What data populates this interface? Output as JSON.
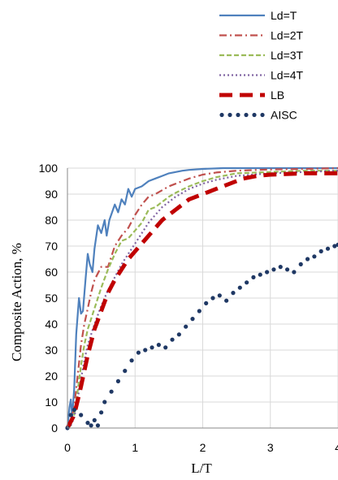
{
  "chart_data": {
    "type": "line",
    "xlabel": "L/T",
    "ylabel": "Composite Action, %",
    "xlim": [
      0,
      4
    ],
    "ylim": [
      0,
      100
    ],
    "x_ticks": [
      "0",
      "1",
      "2",
      "3",
      "4"
    ],
    "y_ticks": [
      "0",
      "10",
      "20",
      "30",
      "40",
      "50",
      "60",
      "70",
      "80",
      "90",
      "100"
    ],
    "grid": "both",
    "legend_position": "top-right",
    "series": [
      {
        "name": "Ld=T",
        "color": "#4f81bd",
        "style": "solid",
        "points": [
          [
            0,
            0
          ],
          [
            0.03,
            8
          ],
          [
            0.05,
            11
          ],
          [
            0.07,
            4
          ],
          [
            0.1,
            15
          ],
          [
            0.13,
            36
          ],
          [
            0.17,
            50
          ],
          [
            0.2,
            44
          ],
          [
            0.23,
            45
          ],
          [
            0.27,
            58
          ],
          [
            0.3,
            67
          ],
          [
            0.33,
            63
          ],
          [
            0.37,
            60
          ],
          [
            0.4,
            69
          ],
          [
            0.45,
            78
          ],
          [
            0.5,
            75
          ],
          [
            0.55,
            80
          ],
          [
            0.58,
            74
          ],
          [
            0.62,
            80
          ],
          [
            0.7,
            86
          ],
          [
            0.75,
            83
          ],
          [
            0.8,
            88
          ],
          [
            0.85,
            86
          ],
          [
            0.9,
            92
          ],
          [
            0.95,
            89
          ],
          [
            1.0,
            92
          ],
          [
            1.1,
            93
          ],
          [
            1.2,
            95
          ],
          [
            1.3,
            96
          ],
          [
            1.4,
            97
          ],
          [
            1.5,
            98
          ],
          [
            1.6,
            98.5
          ],
          [
            1.7,
            99
          ],
          [
            1.8,
            99.3
          ],
          [
            2.0,
            99.7
          ],
          [
            2.3,
            100
          ],
          [
            3.0,
            100
          ],
          [
            4.0,
            100
          ]
        ]
      },
      {
        "name": "Ld=2T",
        "color": "#c0504d",
        "style": "dashdot",
        "points": [
          [
            0,
            0
          ],
          [
            0.05,
            3
          ],
          [
            0.1,
            8
          ],
          [
            0.15,
            20
          ],
          [
            0.2,
            32
          ],
          [
            0.25,
            40
          ],
          [
            0.3,
            46
          ],
          [
            0.35,
            52
          ],
          [
            0.4,
            57
          ],
          [
            0.5,
            62
          ],
          [
            0.6,
            62
          ],
          [
            0.7,
            70
          ],
          [
            0.8,
            74
          ],
          [
            0.9,
            77
          ],
          [
            1.0,
            82
          ],
          [
            1.1,
            86
          ],
          [
            1.2,
            89
          ],
          [
            1.3,
            90
          ],
          [
            1.4,
            91.5
          ],
          [
            1.5,
            93
          ],
          [
            1.6,
            94
          ],
          [
            1.8,
            96
          ],
          [
            2.0,
            97.5
          ],
          [
            2.2,
            98.3
          ],
          [
            2.5,
            99
          ],
          [
            3.0,
            99.5
          ],
          [
            3.5,
            99.7
          ],
          [
            4.0,
            100
          ]
        ]
      },
      {
        "name": "Ld=3T",
        "color": "#9bbb59",
        "style": "dashed",
        "points": [
          [
            0,
            0
          ],
          [
            0.05,
            1
          ],
          [
            0.1,
            5
          ],
          [
            0.15,
            14
          ],
          [
            0.2,
            24
          ],
          [
            0.25,
            32
          ],
          [
            0.3,
            38
          ],
          [
            0.4,
            46
          ],
          [
            0.5,
            54
          ],
          [
            0.6,
            61
          ],
          [
            0.7,
            67
          ],
          [
            0.8,
            72
          ],
          [
            0.9,
            73
          ],
          [
            1.0,
            76
          ],
          [
            1.1,
            79
          ],
          [
            1.2,
            84
          ],
          [
            1.3,
            85
          ],
          [
            1.4,
            87
          ],
          [
            1.5,
            89
          ],
          [
            1.6,
            90.5
          ],
          [
            1.8,
            93
          ],
          [
            2.0,
            95
          ],
          [
            2.2,
            96.5
          ],
          [
            2.5,
            98
          ],
          [
            3.0,
            98.5
          ],
          [
            3.5,
            99
          ],
          [
            4.0,
            99
          ]
        ]
      },
      {
        "name": "Ld=4T",
        "color": "#8064a2",
        "style": "dotted",
        "points": [
          [
            0,
            0
          ],
          [
            0.05,
            1
          ],
          [
            0.1,
            4
          ],
          [
            0.15,
            11
          ],
          [
            0.2,
            19
          ],
          [
            0.25,
            26
          ],
          [
            0.3,
            32
          ],
          [
            0.4,
            40
          ],
          [
            0.5,
            47
          ],
          [
            0.6,
            53
          ],
          [
            0.7,
            58
          ],
          [
            0.8,
            63
          ],
          [
            0.9,
            67
          ],
          [
            1.0,
            71
          ],
          [
            1.1,
            75
          ],
          [
            1.2,
            79
          ],
          [
            1.3,
            82
          ],
          [
            1.4,
            85
          ],
          [
            1.5,
            87
          ],
          [
            1.6,
            89
          ],
          [
            1.8,
            92
          ],
          [
            2.0,
            94
          ],
          [
            2.2,
            95.5
          ],
          [
            2.5,
            97
          ],
          [
            3.0,
            98
          ],
          [
            3.5,
            98.5
          ],
          [
            4.0,
            99
          ]
        ]
      },
      {
        "name": "LB",
        "color": "#c00000",
        "style": "longdash",
        "points": [
          [
            0,
            0
          ],
          [
            0.1,
            5
          ],
          [
            0.2,
            16
          ],
          [
            0.3,
            28
          ],
          [
            0.4,
            38
          ],
          [
            0.5,
            45
          ],
          [
            0.6,
            52
          ],
          [
            0.7,
            57
          ],
          [
            0.8,
            61
          ],
          [
            0.9,
            65
          ],
          [
            1.0,
            68
          ],
          [
            1.2,
            74
          ],
          [
            1.4,
            80
          ],
          [
            1.6,
            84
          ],
          [
            1.8,
            88
          ],
          [
            2.0,
            90
          ],
          [
            2.2,
            92
          ],
          [
            2.4,
            94
          ],
          [
            2.6,
            96
          ],
          [
            2.8,
            97
          ],
          [
            3.0,
            97.5
          ],
          [
            3.5,
            98
          ],
          [
            4.0,
            98
          ]
        ]
      },
      {
        "name": "AISC",
        "color": "#1f3864",
        "style": "dots",
        "points": [
          [
            0.0,
            0
          ],
          [
            0.05,
            5
          ],
          [
            0.1,
            7
          ],
          [
            0.2,
            5
          ],
          [
            0.3,
            2
          ],
          [
            0.35,
            1
          ],
          [
            0.4,
            3
          ],
          [
            0.45,
            1
          ],
          [
            0.5,
            6
          ],
          [
            0.55,
            10
          ],
          [
            0.65,
            14
          ],
          [
            0.75,
            18
          ],
          [
            0.85,
            22
          ],
          [
            0.95,
            26
          ],
          [
            1.05,
            29
          ],
          [
            1.15,
            30
          ],
          [
            1.25,
            31
          ],
          [
            1.35,
            32
          ],
          [
            1.45,
            31
          ],
          [
            1.55,
            34
          ],
          [
            1.65,
            36
          ],
          [
            1.75,
            39
          ],
          [
            1.85,
            42
          ],
          [
            1.95,
            45
          ],
          [
            2.05,
            48
          ],
          [
            2.15,
            50
          ],
          [
            2.25,
            51
          ],
          [
            2.35,
            49
          ],
          [
            2.45,
            52
          ],
          [
            2.55,
            54
          ],
          [
            2.65,
            56
          ],
          [
            2.75,
            58
          ],
          [
            2.85,
            59
          ],
          [
            2.95,
            60
          ],
          [
            3.05,
            61
          ],
          [
            3.15,
            62
          ],
          [
            3.25,
            61
          ],
          [
            3.35,
            60
          ],
          [
            3.45,
            63
          ],
          [
            3.55,
            65
          ],
          [
            3.65,
            66
          ],
          [
            3.75,
            68
          ],
          [
            3.85,
            69
          ],
          [
            3.95,
            70
          ],
          [
            4.0,
            70.5
          ]
        ]
      }
    ]
  }
}
